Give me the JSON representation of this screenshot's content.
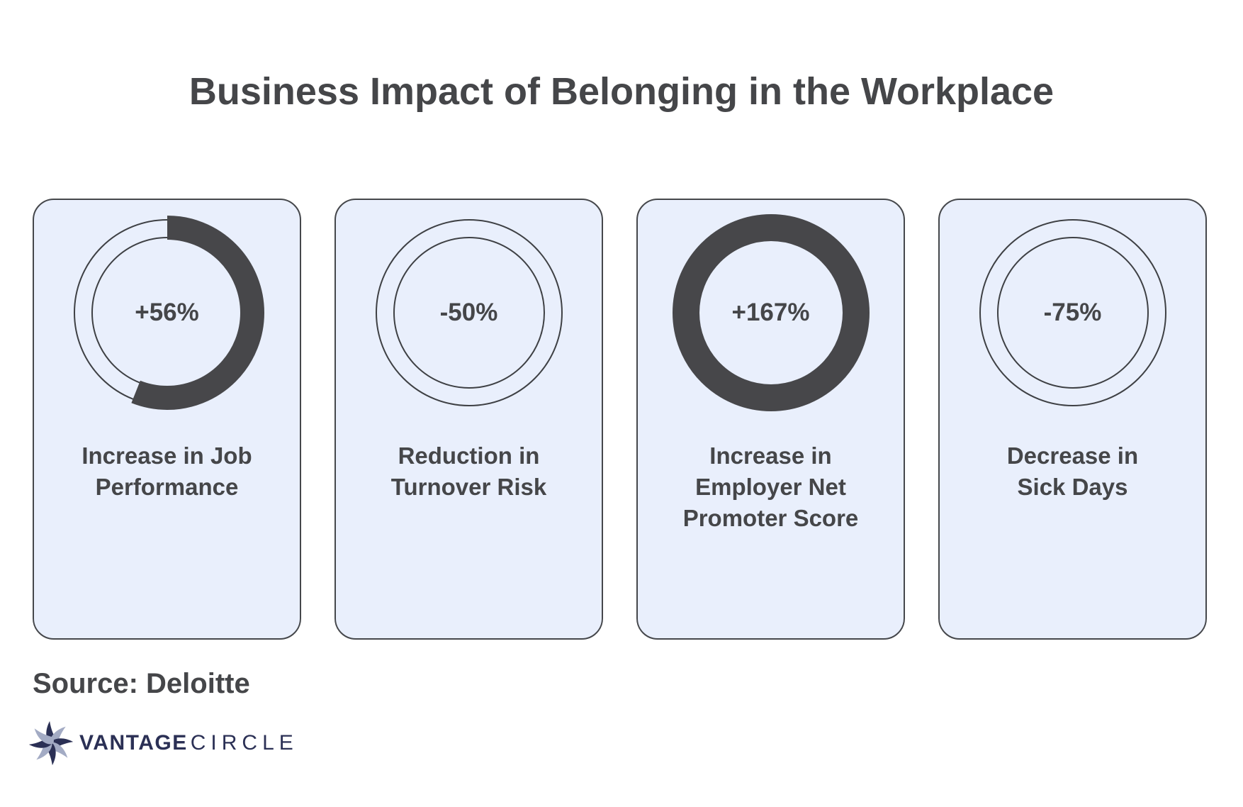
{
  "title": "Business Impact of Belonging in the Workplace",
  "source": "Source: Deloitte",
  "logo": {
    "icon": "pinwheel-star-icon",
    "brand_primary": "VANTAGE",
    "brand_secondary": "CIRCLE"
  },
  "colors": {
    "page_bg": "#ffffff",
    "card_bg": "#e9effc",
    "card_border": "#45474b",
    "dark_gray": "#454649",
    "ring_arc": "#47474a",
    "ring_track": "#3e4044",
    "logo_navy": "#2b3055",
    "logo_light": "#a3abc4"
  },
  "chart_data": {
    "type": "pie",
    "subtype": "donut-stat-cards",
    "title": "Business Impact of Belonging in the Workplace",
    "source": "Source: Deloitte",
    "legend": "none",
    "cards": [
      {
        "value_label": "+56%",
        "value_pct": 56,
        "ring_fill_pct": 56,
        "label": "Increase in Job Performance",
        "label_lines": [
          "Increase in Job",
          "Performance"
        ]
      },
      {
        "value_label": "-50%",
        "value_pct": -50,
        "ring_fill_pct": 0,
        "label": "Reduction in Turnover Risk",
        "label_lines": [
          "Reduction in",
          "Turnover Risk"
        ]
      },
      {
        "value_label": "+167%",
        "value_pct": 167,
        "ring_fill_pct": 100,
        "label": "Increase in Employer Net Promoter Score",
        "label_lines": [
          "Increase in",
          "Employer Net",
          "Promoter Score"
        ]
      },
      {
        "value_label": "-75%",
        "value_pct": -75,
        "ring_fill_pct": 0,
        "label": "Decrease in Sick Days",
        "label_lines": [
          "Decrease in",
          "Sick Days"
        ]
      }
    ]
  }
}
